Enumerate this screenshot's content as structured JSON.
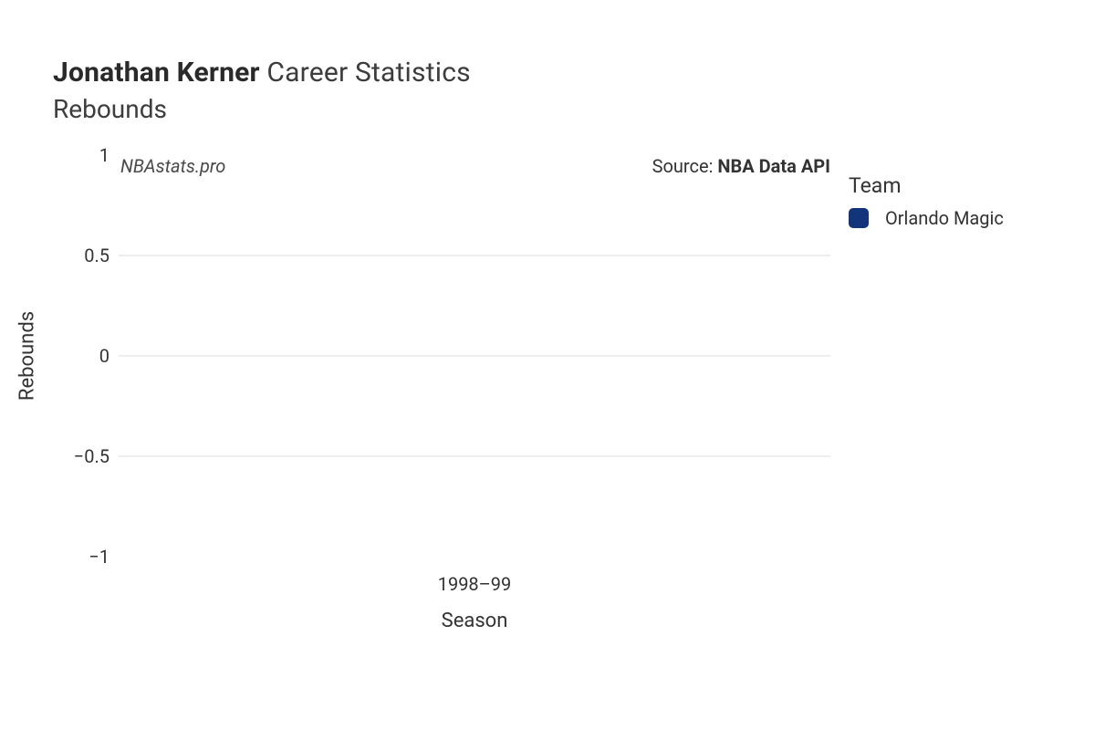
{
  "title": {
    "player_name": "Jonathan Kerner",
    "suffix": "Career Statistics",
    "subtitle": "Rebounds"
  },
  "watermark": "NBAstats.pro",
  "source": {
    "prefix": "Source:",
    "name": "NBA Data API"
  },
  "chart": {
    "type": "bar",
    "ylabel": "Rebounds",
    "xlabel": "Season",
    "ylim": [
      -1,
      1
    ],
    "yticks": [
      {
        "v": 1,
        "label": "1"
      },
      {
        "v": 0.5,
        "label": "0.5"
      },
      {
        "v": 0,
        "label": "0"
      },
      {
        "v": -0.5,
        "label": "−0.5"
      },
      {
        "v": -1,
        "label": "−1"
      }
    ],
    "grid_values": [
      0.5,
      0,
      -0.5
    ],
    "grid_color": "#edeef0",
    "background_color": "#ffffff",
    "categories": [
      "1998–99"
    ],
    "series": [
      {
        "team": "Orlando Magic",
        "color": "#12347a",
        "values": [
          0
        ]
      }
    ],
    "tick_fontsize": 20,
    "label_fontsize": 22,
    "title_fontsize": 30
  },
  "legend": {
    "title": "Team",
    "items": [
      {
        "label": "Orlando Magic",
        "color": "#12347a"
      }
    ]
  }
}
